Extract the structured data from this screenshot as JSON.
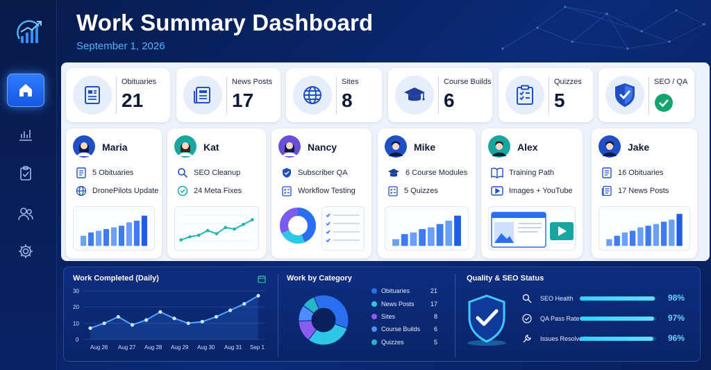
{
  "header": {
    "title": "Work Summary Dashboard",
    "date": "September 1, 2026"
  },
  "sidebar": {
    "items": [
      {
        "name": "home",
        "icon": "home-icon",
        "active": true
      },
      {
        "name": "reports",
        "icon": "bar-chart-icon"
      },
      {
        "name": "tasks",
        "icon": "clipboard-icon"
      },
      {
        "name": "team",
        "icon": "users-icon"
      },
      {
        "name": "settings",
        "icon": "gear-icon"
      }
    ]
  },
  "stats": [
    {
      "label": "Obituaries",
      "value": "21",
      "icon": "document-icon"
    },
    {
      "label": "News Posts",
      "value": "17",
      "icon": "newspaper-icon"
    },
    {
      "label": "Sites",
      "value": "8",
      "icon": "globe-icon"
    },
    {
      "label": "Course Builds",
      "value": "6",
      "icon": "graduation-cap-icon"
    },
    {
      "label": "Quizzes",
      "value": "5",
      "icon": "checklist-icon"
    },
    {
      "label": "SEO / QA",
      "value": "",
      "icon": "shield-check-icon"
    }
  ],
  "people": [
    {
      "name": "Maria",
      "tasks": [
        "5 Obituaries",
        "DronePilots Update"
      ],
      "bars": [
        0.3,
        0.4,
        0.45,
        0.5,
        0.55,
        0.6,
        0.7,
        0.75,
        0.9
      ]
    },
    {
      "name": "Kat",
      "tasks": [
        "SEO Cleanup",
        "24 Meta Fixes"
      ],
      "line": [
        0.15,
        0.25,
        0.3,
        0.45,
        0.35,
        0.55,
        0.5,
        0.65,
        0.8
      ]
    },
    {
      "name": "Nancy",
      "tasks": [
        "Subscriber QA",
        "Workflow Testing"
      ]
    },
    {
      "name": "Mike",
      "tasks": [
        "6 Course Modules",
        "5 Quizzes"
      ],
      "bars": [
        0.2,
        0.35,
        0.4,
        0.5,
        0.55,
        0.65,
        0.75,
        0.9
      ]
    },
    {
      "name": "Alex",
      "tasks": [
        "Training Path",
        "Images + YouTube"
      ]
    },
    {
      "name": "Jake",
      "tasks": [
        "16 Obituaries",
        "17 News Posts"
      ],
      "bars": [
        0.2,
        0.3,
        0.4,
        0.45,
        0.55,
        0.6,
        0.65,
        0.72,
        0.78,
        0.95
      ]
    }
  ],
  "work_completed": {
    "title": "Work Completed (Daily)",
    "y_ticks": [
      "30",
      "20",
      "10",
      "0"
    ],
    "x_ticks": [
      "Aug 26",
      "Aug 27",
      "Aug 28",
      "Aug 29",
      "Aug 30",
      "Aug 31",
      "Sep 1"
    ],
    "series": [
      7,
      10,
      14,
      9,
      12,
      17,
      13,
      10,
      11,
      14,
      18,
      22,
      27
    ]
  },
  "work_by_category": {
    "title": "Work by Category",
    "items": [
      {
        "label": "Obituaries",
        "value": 21,
        "color": "#2a6ff0"
      },
      {
        "label": "News Posts",
        "value": 17,
        "color": "#2fc7e8"
      },
      {
        "label": "Sites",
        "value": 8,
        "color": "#8a5cf0"
      },
      {
        "label": "Course Builds",
        "value": 6,
        "color": "#4e8cff"
      },
      {
        "label": "Quizzes",
        "value": 5,
        "color": "#23b7c7"
      }
    ]
  },
  "quality": {
    "title": "Quality & SEO Status",
    "items": [
      {
        "label": "SEO Health",
        "value": "98%",
        "level": 0.98,
        "icon": "search-icon"
      },
      {
        "label": "QA Pass Rate",
        "value": "97%",
        "level": 0.97,
        "icon": "check-circle-icon"
      },
      {
        "label": "Issues Resolved",
        "value": "96%",
        "level": 0.96,
        "icon": "wrench-icon"
      }
    ]
  },
  "colors": {
    "accent": "#2f7bff",
    "cyan": "#2fd3ff",
    "navy": "#0a2468"
  }
}
